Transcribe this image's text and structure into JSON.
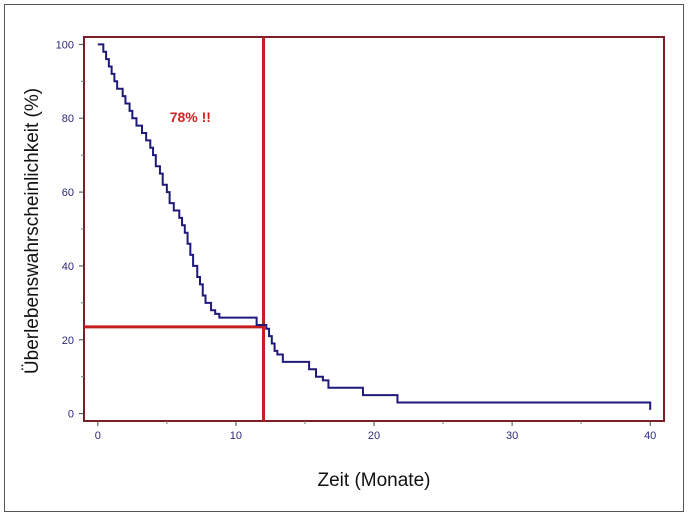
{
  "chart_data": {
    "type": "line",
    "subtype": "kaplan-meier-step",
    "xlabel": "Zeit (Monate)",
    "ylabel": "Überlebenswahrscheinlichkeit (%)",
    "xlim": [
      -1,
      41
    ],
    "ylim": [
      -2,
      102
    ],
    "xticks": [
      0,
      10,
      20,
      30,
      40
    ],
    "yticks": [
      0,
      20,
      40,
      60,
      80,
      100
    ],
    "grid": false,
    "series": [
      {
        "color": "#1f1a7a",
        "steps": [
          [
            0,
            100
          ],
          [
            0.4,
            98
          ],
          [
            0.6,
            96
          ],
          [
            0.8,
            94
          ],
          [
            1.0,
            92
          ],
          [
            1.2,
            90
          ],
          [
            1.4,
            88
          ],
          [
            1.8,
            86
          ],
          [
            2.0,
            84
          ],
          [
            2.3,
            82
          ],
          [
            2.5,
            80
          ],
          [
            2.8,
            78
          ],
          [
            3.2,
            76
          ],
          [
            3.5,
            74
          ],
          [
            3.8,
            72
          ],
          [
            4.0,
            70
          ],
          [
            4.2,
            67
          ],
          [
            4.5,
            65
          ],
          [
            4.7,
            62
          ],
          [
            5.0,
            60
          ],
          [
            5.2,
            57
          ],
          [
            5.5,
            55
          ],
          [
            5.9,
            53
          ],
          [
            6.1,
            51
          ],
          [
            6.3,
            49
          ],
          [
            6.5,
            46
          ],
          [
            6.7,
            43
          ],
          [
            6.9,
            40
          ],
          [
            7.2,
            37
          ],
          [
            7.4,
            35
          ],
          [
            7.6,
            32
          ],
          [
            7.8,
            30
          ],
          [
            8.2,
            28
          ],
          [
            8.5,
            27
          ],
          [
            8.8,
            26
          ],
          [
            10.0,
            26
          ],
          [
            11.5,
            24
          ],
          [
            12.2,
            23
          ],
          [
            12.4,
            21
          ],
          [
            12.6,
            19
          ],
          [
            12.8,
            17
          ],
          [
            13.0,
            16
          ],
          [
            13.4,
            14
          ],
          [
            14.6,
            14
          ],
          [
            15.3,
            12
          ],
          [
            15.8,
            10
          ],
          [
            16.3,
            9
          ],
          [
            16.7,
            7
          ],
          [
            19.2,
            5
          ],
          [
            21.7,
            3
          ],
          [
            30.0,
            3
          ],
          [
            39.8,
            3
          ],
          [
            40.0,
            1
          ]
        ],
        "end_x": 40.0
      }
    ],
    "reference_lines": [
      {
        "orientation": "vertical",
        "x": 12,
        "color": "#c41e1e"
      },
      {
        "orientation": "horizontal",
        "y": 23.5,
        "x_range": [
          -1,
          12
        ],
        "color": "#c41e1e"
      }
    ],
    "annotations": [
      {
        "text": "78% !!",
        "x": 6.7,
        "y": 79,
        "color": "#d42020"
      }
    ]
  }
}
